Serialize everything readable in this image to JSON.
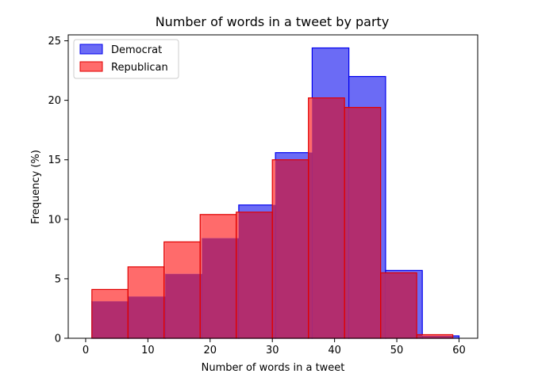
{
  "chart_data": {
    "type": "bar",
    "title": "Number of words in a tweet by party",
    "xlabel": "Number of words in a tweet",
    "ylabel": "Frequency (%)",
    "xlim": [
      -2.8,
      63
    ],
    "ylim": [
      0,
      25.5
    ],
    "xticks": [
      0,
      10,
      20,
      30,
      40,
      50,
      60
    ],
    "yticks": [
      0,
      5,
      10,
      15,
      20,
      25
    ],
    "grid": false,
    "legend": {
      "placement": "top-left"
    },
    "series": [
      {
        "name": "Democrat",
        "fill": "#6b6bf5",
        "stroke": "#0000ee",
        "bin_edges": [
          1.0,
          6.9,
          12.8,
          18.7,
          24.6,
          30.5,
          36.4,
          42.3,
          48.2,
          54.1,
          60.0
        ],
        "values": [
          3.1,
          3.5,
          5.4,
          8.4,
          11.2,
          15.6,
          24.4,
          22.0,
          5.7,
          0.2
        ]
      },
      {
        "name": "Republican",
        "fill": "#ff6b6b",
        "stroke": "#e00000",
        "bin_edges": [
          1.0,
          6.8,
          12.6,
          18.4,
          24.2,
          30.0,
          35.8,
          41.6,
          47.4,
          53.2,
          59.0
        ],
        "values": [
          4.1,
          6.0,
          8.1,
          10.4,
          10.6,
          15.0,
          20.2,
          19.4,
          5.5,
          0.3
        ]
      }
    ],
    "overlap_color": "#b22d6e"
  }
}
